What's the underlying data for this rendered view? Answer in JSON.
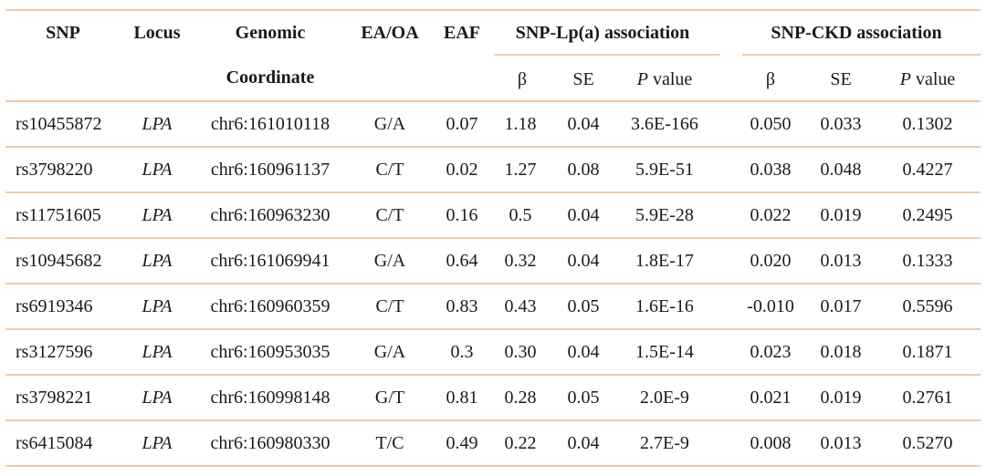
{
  "table": {
    "header": {
      "snp": "SNP",
      "locus": "Locus",
      "genomic_line1": "Genomic",
      "genomic_line2": "Coordinate",
      "ea_oa": "EA/OA",
      "eaf": "EAF",
      "lpa_group": "SNP-Lp(a) association",
      "ckd_group": "SNP-CKD association",
      "beta": "β",
      "se": "SE",
      "p_italic": "P",
      "p_rest": " value"
    },
    "rows": [
      {
        "snp": "rs10455872",
        "locus": "LPA",
        "coord": "chr6:161010118",
        "ea_oa": "G/A",
        "eaf": "0.07",
        "lpa_beta": "1.18",
        "lpa_se": "0.04",
        "lpa_p": "3.6E-166",
        "ckd_beta": "0.050",
        "ckd_se": "0.033",
        "ckd_p": "0.1302"
      },
      {
        "snp": "rs3798220",
        "locus": "LPA",
        "coord": "chr6:160961137",
        "ea_oa": "C/T",
        "eaf": "0.02",
        "lpa_beta": "1.27",
        "lpa_se": "0.08",
        "lpa_p": "5.9E-51",
        "ckd_beta": "0.038",
        "ckd_se": "0.048",
        "ckd_p": "0.4227"
      },
      {
        "snp": "rs11751605",
        "locus": "LPA",
        "coord": "chr6:160963230",
        "ea_oa": "C/T",
        "eaf": "0.16",
        "lpa_beta": "0.5",
        "lpa_se": "0.04",
        "lpa_p": "5.9E-28",
        "ckd_beta": "0.022",
        "ckd_se": "0.019",
        "ckd_p": "0.2495"
      },
      {
        "snp": "rs10945682",
        "locus": "LPA",
        "coord": "chr6:161069941",
        "ea_oa": "G/A",
        "eaf": "0.64",
        "lpa_beta": "0.32",
        "lpa_se": "0.04",
        "lpa_p": "1.8E-17",
        "ckd_beta": "0.020",
        "ckd_se": "0.013",
        "ckd_p": "0.1333"
      },
      {
        "snp": "rs6919346",
        "locus": "LPA",
        "coord": "chr6:160960359",
        "ea_oa": "C/T",
        "eaf": "0.83",
        "lpa_beta": "0.43",
        "lpa_se": "0.05",
        "lpa_p": "1.6E-16",
        "ckd_beta": "-0.010",
        "ckd_se": "0.017",
        "ckd_p": "0.5596"
      },
      {
        "snp": "rs3127596",
        "locus": "LPA",
        "coord": "chr6:160953035",
        "ea_oa": "G/A",
        "eaf": "0.3",
        "lpa_beta": "0.30",
        "lpa_se": "0.04",
        "lpa_p": "1.5E-14",
        "ckd_beta": "0.023",
        "ckd_se": "0.018",
        "ckd_p": "0.1871"
      },
      {
        "snp": "rs3798221",
        "locus": "LPA",
        "coord": "chr6:160998148",
        "ea_oa": "G/T",
        "eaf": "0.81",
        "lpa_beta": "0.28",
        "lpa_se": "0.05",
        "lpa_p": "2.0E-9",
        "ckd_beta": "0.021",
        "ckd_se": "0.019",
        "ckd_p": "0.2761"
      },
      {
        "snp": "rs6415084",
        "locus": "LPA",
        "coord": "chr6:160980330",
        "ea_oa": "T/C",
        "eaf": "0.49",
        "lpa_beta": "0.22",
        "lpa_se": "0.04",
        "lpa_p": "2.7E-9",
        "ckd_beta": "0.008",
        "ckd_se": "0.013",
        "ckd_p": "0.5270"
      }
    ]
  },
  "colors": {
    "rule": "#f2c9a8",
    "text": "#1a1a1a"
  }
}
